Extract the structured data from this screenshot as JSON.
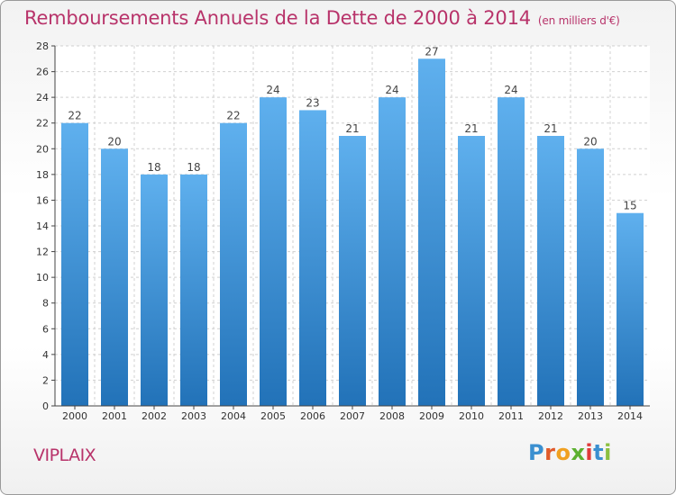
{
  "header": {
    "title": "Remboursements Annuels de la Dette de 2000 à 2014",
    "unit": "(en milliers d'€)"
  },
  "footer": {
    "commune": "VIPLAIX",
    "logo_text": "Proxiti"
  },
  "colors": {
    "title": "#b8336a",
    "bar_top": "#5fb0ee",
    "bar_bottom": "#2272b8"
  },
  "chart_data": {
    "type": "bar",
    "categories": [
      "2000",
      "2001",
      "2002",
      "2003",
      "2004",
      "2005",
      "2006",
      "2007",
      "2008",
      "2009",
      "2010",
      "2011",
      "2012",
      "2013",
      "2014"
    ],
    "values": [
      22,
      20,
      18,
      18,
      22,
      24,
      23,
      21,
      24,
      27,
      21,
      24,
      21,
      20,
      15
    ],
    "title": "Remboursements Annuels de la Dette de 2000 à 2014",
    "xlabel": "",
    "ylabel": "",
    "ylim": [
      0,
      28
    ],
    "yticks": [
      0,
      2,
      4,
      6,
      8,
      10,
      12,
      14,
      16,
      18,
      20,
      22,
      24,
      26,
      28
    ],
    "grid": true,
    "data_labels": true
  }
}
